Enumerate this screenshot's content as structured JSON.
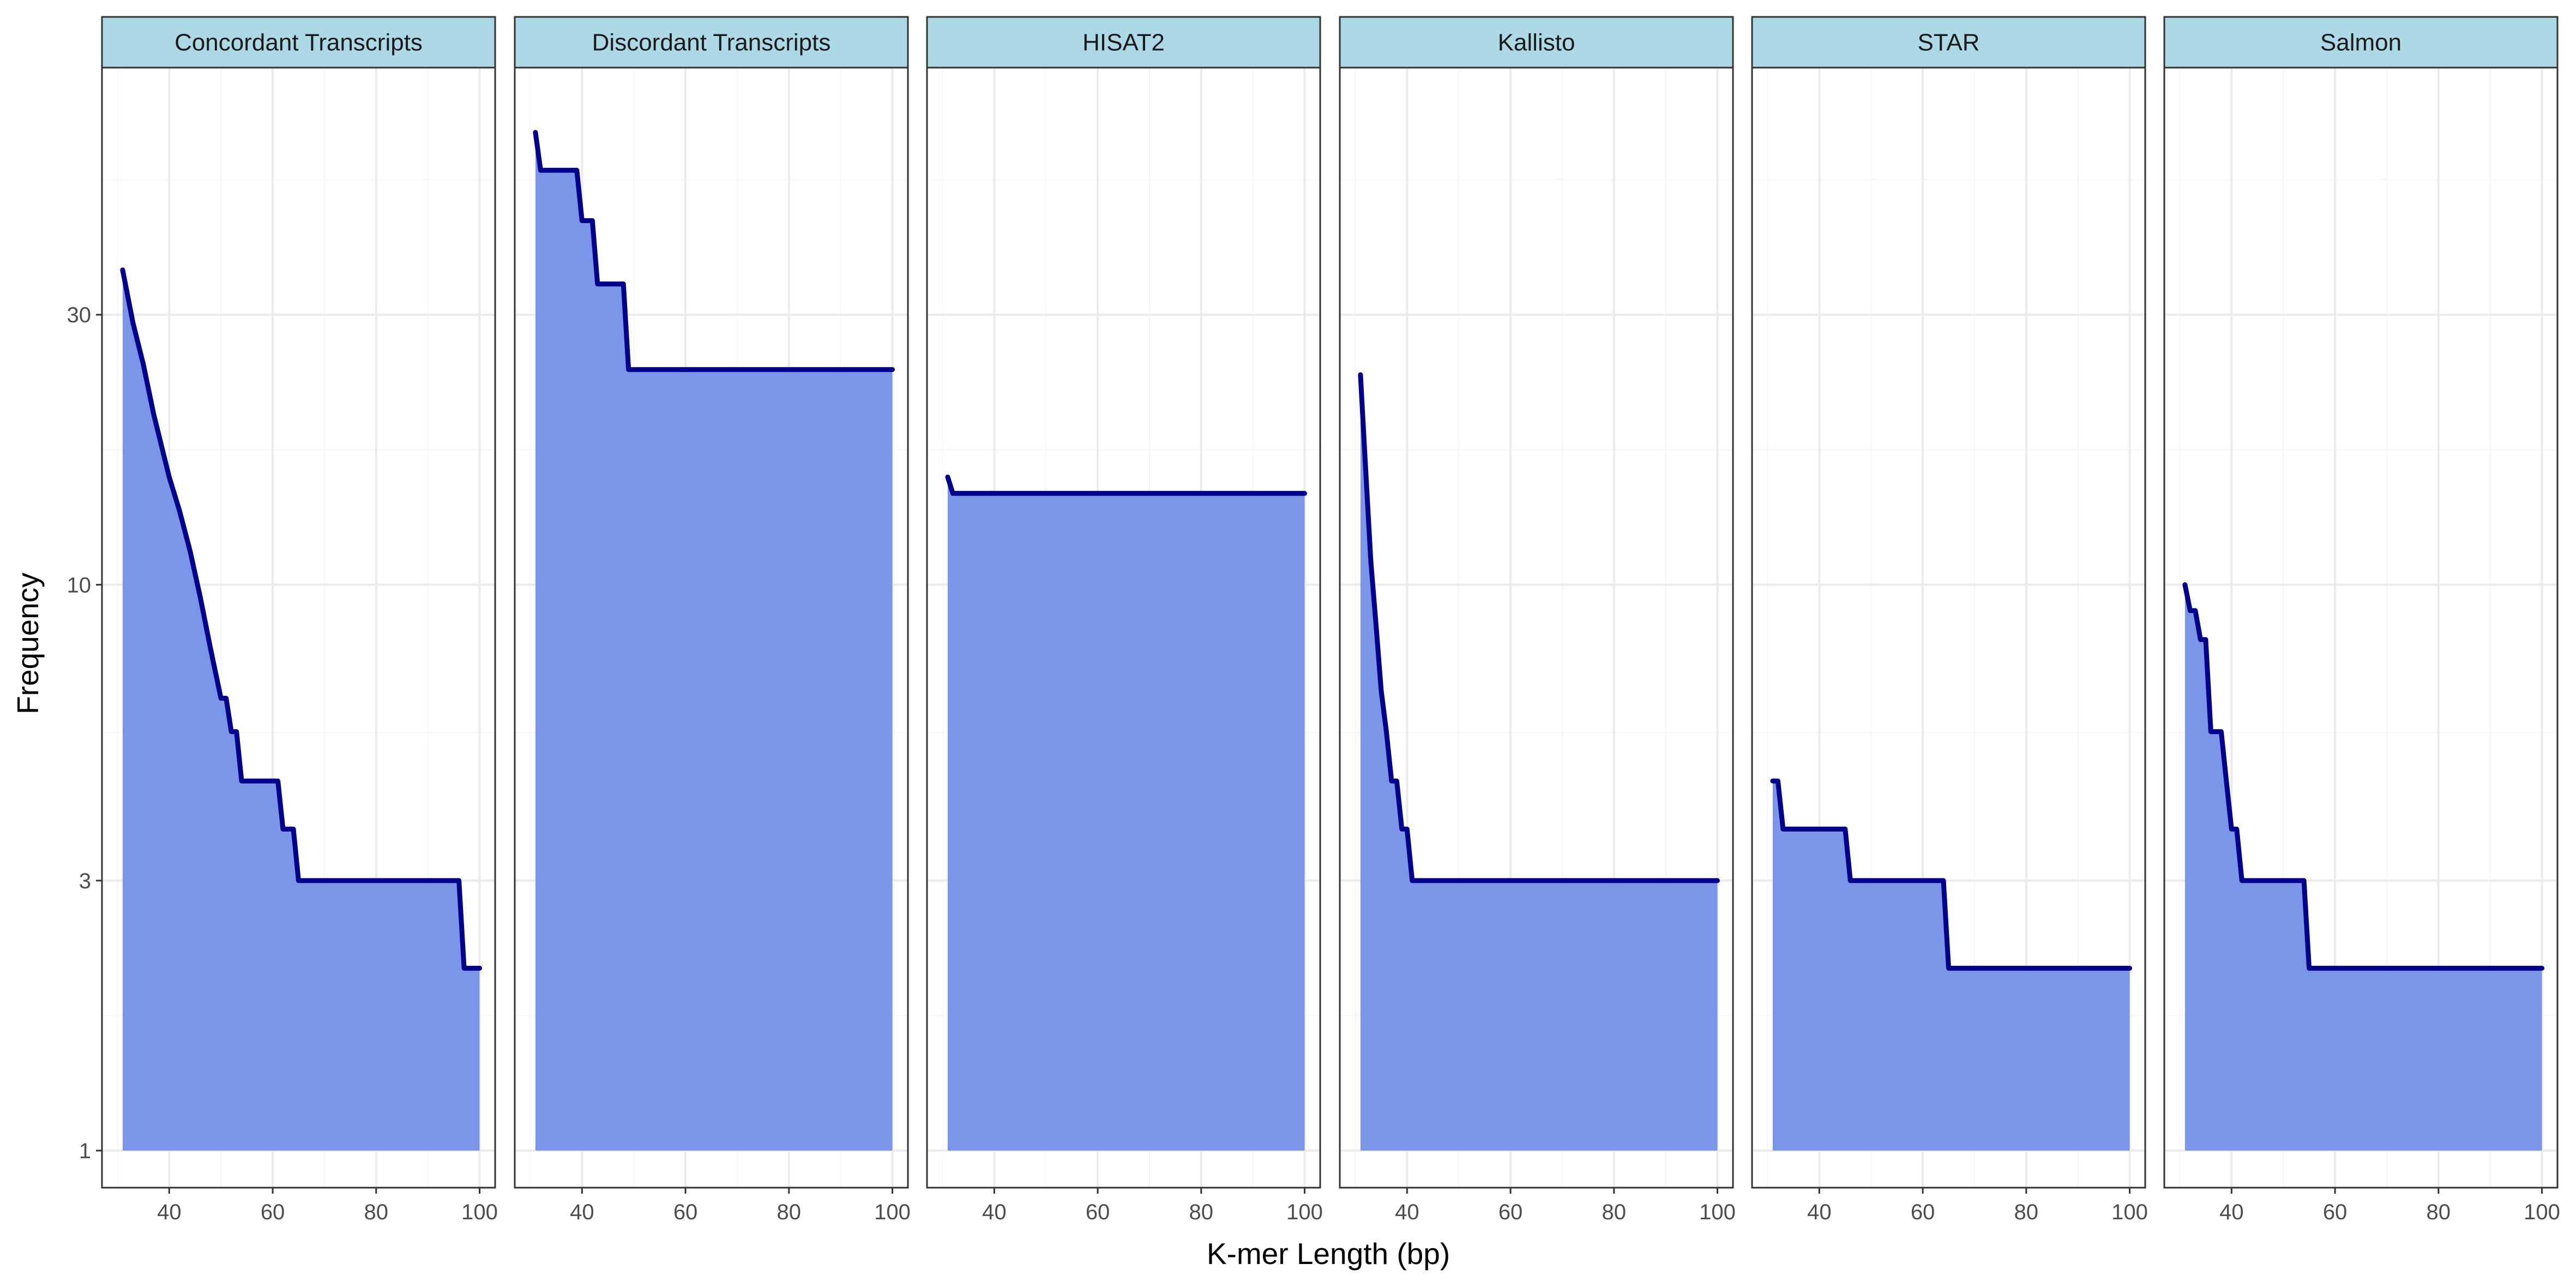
{
  "chart_data": {
    "type": "area",
    "xlabel": "K-mer Length (bp)",
    "ylabel": "Frequency",
    "y_scale": "log10",
    "xlim": [
      27,
      103
    ],
    "ylim": [
      0.86,
      82
    ],
    "x_ticks": [
      40,
      60,
      80,
      100
    ],
    "x_tick_labels": [
      "40",
      "60",
      "80",
      "100"
    ],
    "y_ticks": [
      1,
      3,
      10,
      30
    ],
    "y_tick_labels": [
      "1",
      "3",
      "10",
      "30"
    ],
    "grid": true,
    "legend": "none",
    "colors": {
      "line": "#00008b",
      "fill": "#7b96e8",
      "strip_fill": "#add8e6",
      "strip_border": "#333333",
      "panel_border": "#333333",
      "grid_major": "#ebebeb",
      "grid_minor": "#f5f5f5",
      "tick_text": "#4d4d4d"
    },
    "panels": [
      {
        "name": "Concordant Transcripts",
        "x": [
          31,
          33,
          35,
          37,
          40,
          42,
          44,
          46,
          48,
          50,
          51,
          52,
          53,
          54,
          61,
          62,
          64,
          65,
          96,
          97,
          100
        ],
        "y": [
          36,
          29,
          24.5,
          20,
          15.5,
          13.5,
          11.5,
          9.5,
          7.7,
          6.3,
          6.3,
          5.5,
          5.5,
          4.5,
          4.5,
          3.7,
          3.7,
          3,
          3,
          2.1,
          2.1
        ]
      },
      {
        "name": "Discordant Transcripts",
        "x": [
          31,
          32,
          39,
          40,
          42,
          43,
          48,
          49,
          100
        ],
        "y": [
          63,
          54,
          54,
          44,
          44,
          34,
          34,
          24,
          24
        ]
      },
      {
        "name": "HISAT2",
        "x": [
          31,
          32,
          100
        ],
        "y": [
          15.5,
          14.5,
          14.5
        ]
      },
      {
        "name": "Kallisto",
        "x": [
          31,
          32,
          33,
          34,
          35,
          36,
          37,
          38,
          39,
          40,
          41,
          42,
          100
        ],
        "y": [
          23.5,
          16,
          11,
          8.5,
          6.5,
          5.5,
          4.5,
          4.5,
          3.7,
          3.7,
          3,
          3,
          3
        ]
      },
      {
        "name": "STAR",
        "x": [
          31,
          32,
          33,
          45,
          46,
          64,
          65,
          100
        ],
        "y": [
          4.5,
          4.5,
          3.7,
          3.7,
          3,
          3,
          2.1,
          2.1
        ]
      },
      {
        "name": "Salmon",
        "x": [
          31,
          32,
          33,
          34,
          35,
          36,
          38,
          39,
          40,
          41,
          42,
          43,
          54,
          55,
          100
        ],
        "y": [
          10,
          9,
          9,
          8,
          8,
          5.5,
          5.5,
          4.5,
          3.7,
          3.7,
          3,
          3,
          3,
          2.1,
          2.1
        ]
      }
    ]
  }
}
